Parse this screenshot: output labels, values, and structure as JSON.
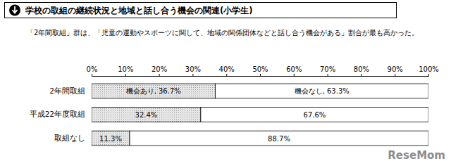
{
  "chart_data": {
    "type": "bar",
    "title": "学校の取組の継続状況と地域と話し合う機会の関連(小学生)",
    "subtitle": "「2年間取組」群は、「児童の運動やスポーツに関して、地域の関係団体などと話し合う機会がある」割合が最も高かった。",
    "orientation": "horizontal",
    "stacked": true,
    "data_labels": true,
    "grid": false,
    "categories": [
      "2年間取組",
      "平成22年度取組",
      "取組なし"
    ],
    "series": [
      {
        "name": "機会あり",
        "color": "#e6e6e6",
        "values": [
          36.7,
          32.4,
          11.3
        ],
        "value_labels": [
          "機会あり, 36.7%",
          "32.4%",
          "11.3%"
        ]
      },
      {
        "name": "機会なし",
        "color": "#ffffff",
        "values": [
          63.3,
          67.6,
          88.7
        ],
        "value_labels": [
          "機会なし, 63.3%",
          "67.6%",
          "88.7%"
        ]
      }
    ],
    "xlim": [
      0,
      100
    ],
    "xticks": [
      {
        "value": 0,
        "label": "0%"
      },
      {
        "value": 10,
        "label": "10%"
      },
      {
        "value": 20,
        "label": "20%"
      },
      {
        "value": 30,
        "label": "30%"
      },
      {
        "value": 40,
        "label": "40%"
      },
      {
        "value": 50,
        "label": "50%"
      },
      {
        "value": 60,
        "label": "60%"
      },
      {
        "value": 70,
        "label": "70%"
      },
      {
        "value": 80,
        "label": "80%"
      },
      {
        "value": 90,
        "label": "90%"
      },
      {
        "value": 100,
        "label": "100%"
      }
    ],
    "annotations": [
      "ReseMom"
    ]
  }
}
